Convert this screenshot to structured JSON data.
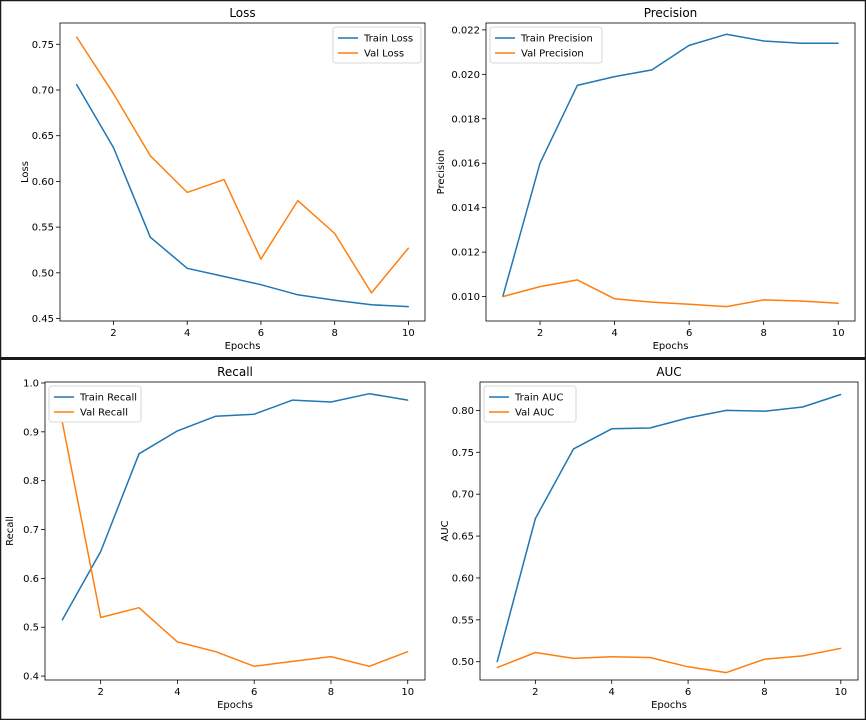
{
  "chart_data": [
    {
      "type": "line",
      "title": "Loss",
      "xlabel": "Epochs",
      "ylabel": "Loss",
      "xlim": [
        0.55,
        10.45
      ],
      "ylim": [
        0.4473,
        0.7733
      ],
      "xticks": [
        2,
        4,
        6,
        8,
        10
      ],
      "yticks": [
        0.45,
        0.5,
        0.55,
        0.6,
        0.65,
        0.7,
        0.75
      ],
      "tick_format": 2,
      "legend": "top-right",
      "grid": false,
      "x": [
        1,
        2,
        3,
        4,
        5,
        6,
        7,
        8,
        9,
        10
      ],
      "series": [
        {
          "name": "Train Loss",
          "color": "#1f77b4",
          "values": [
            0.706,
            0.637,
            0.539,
            0.505,
            0.496,
            0.487,
            0.476,
            0.47,
            0.465,
            0.463
          ]
        },
        {
          "name": "Val Loss",
          "color": "#ff7f0e",
          "values": [
            0.758,
            0.696,
            0.628,
            0.588,
            0.602,
            0.515,
            0.579,
            0.543,
            0.478,
            0.527
          ]
        }
      ]
    },
    {
      "type": "line",
      "title": "Precision",
      "xlabel": "Epochs",
      "ylabel": "Precision",
      "xlim": [
        0.55,
        10.45
      ],
      "ylim": [
        0.0089,
        0.02231
      ],
      "xticks": [
        2,
        4,
        6,
        8,
        10
      ],
      "yticks": [
        0.01,
        0.012,
        0.014,
        0.016,
        0.018,
        0.02,
        0.022
      ],
      "tick_format": 3,
      "legend": "top-left",
      "grid": false,
      "x": [
        1,
        2,
        3,
        4,
        5,
        6,
        7,
        8,
        9,
        10
      ],
      "series": [
        {
          "name": "Train Precision",
          "color": "#1f77b4",
          "values": [
            0.01,
            0.016,
            0.0195,
            0.0199,
            0.0202,
            0.0213,
            0.0218,
            0.0215,
            0.0214,
            0.0214
          ]
        },
        {
          "name": "Val Precision",
          "color": "#ff7f0e",
          "values": [
            0.01,
            0.01045,
            0.01075,
            0.0099,
            0.00975,
            0.00965,
            0.00955,
            0.00985,
            0.0098,
            0.0097
          ]
        }
      ]
    },
    {
      "type": "line",
      "title": "Recall",
      "xlabel": "Epochs",
      "ylabel": "Recall",
      "xlim": [
        0.55,
        10.45
      ],
      "ylim": [
        0.392,
        1.002
      ],
      "xticks": [
        2,
        4,
        6,
        8,
        10
      ],
      "yticks": [
        0.4,
        0.5,
        0.6,
        0.7,
        0.8,
        0.9,
        1.0
      ],
      "tick_format": 1,
      "legend": "top-left",
      "grid": false,
      "x": [
        1,
        2,
        3,
        4,
        5,
        6,
        7,
        8,
        9,
        10
      ],
      "series": [
        {
          "name": "Train Recall",
          "color": "#1f77b4",
          "values": [
            0.515,
            0.655,
            0.855,
            0.902,
            0.932,
            0.936,
            0.965,
            0.961,
            0.978,
            0.965
          ]
        },
        {
          "name": "Val Recall",
          "color": "#ff7f0e",
          "values": [
            0.92,
            0.52,
            0.54,
            0.47,
            0.45,
            0.42,
            0.43,
            0.44,
            0.42,
            0.45
          ]
        }
      ]
    },
    {
      "type": "line",
      "title": "AUC",
      "xlabel": "Epochs",
      "ylabel": "AUC",
      "xlim": [
        0.55,
        10.45
      ],
      "ylim": [
        0.4782,
        0.8339
      ],
      "xticks": [
        2,
        4,
        6,
        8,
        10
      ],
      "yticks": [
        0.5,
        0.55,
        0.6,
        0.65,
        0.7,
        0.75,
        0.8
      ],
      "tick_format": 2,
      "legend": "top-left",
      "grid": false,
      "x": [
        1,
        2,
        3,
        4,
        5,
        6,
        7,
        8,
        9,
        10
      ],
      "series": [
        {
          "name": "Train AUC",
          "color": "#1f77b4",
          "values": [
            0.5,
            0.671,
            0.754,
            0.778,
            0.779,
            0.791,
            0.8,
            0.799,
            0.804,
            0.819
          ]
        },
        {
          "name": "Val AUC",
          "color": "#ff7f0e",
          "values": [
            0.493,
            0.511,
            0.504,
            0.506,
            0.505,
            0.494,
            0.487,
            0.503,
            0.507,
            0.516
          ]
        }
      ]
    }
  ]
}
